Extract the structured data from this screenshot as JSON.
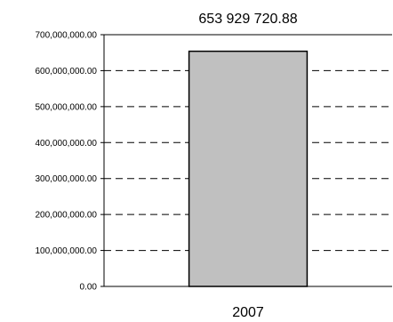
{
  "chart_data": {
    "type": "bar",
    "categories": [
      "2007"
    ],
    "values": [
      653929720.88
    ],
    "data_labels": [
      "653 929 720.88"
    ],
    "ylim": [
      0,
      700000000
    ],
    "yticks": [
      0,
      100000000,
      200000000,
      300000000,
      400000000,
      500000000,
      600000000,
      700000000
    ],
    "ytick_labels": [
      "0.00",
      "100,000,000.00",
      "200,000,000.00",
      "300,000,000.00",
      "400,000,000.00",
      "500,000,000.00",
      "600,000,000.00",
      "700,000,000.00"
    ],
    "grid": "dashed-horizontal",
    "colors": {
      "bar_fill": "#c0c0c0",
      "bar_stroke": "#000000",
      "grid": "#000000",
      "axis": "#000000"
    }
  }
}
